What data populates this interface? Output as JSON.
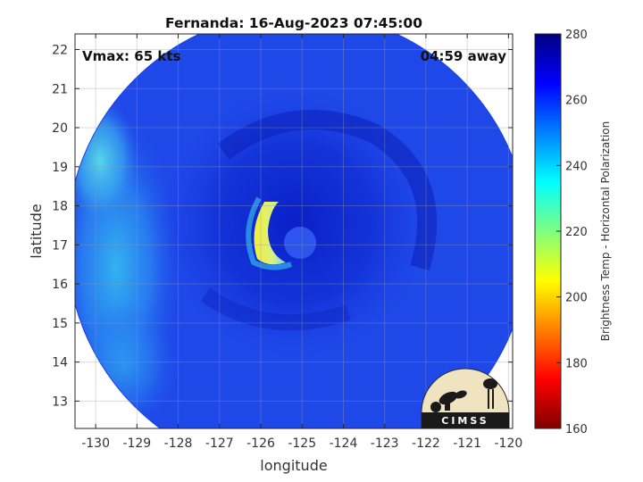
{
  "chart_data": {
    "type": "heatmap",
    "title": "Fernanda: 16-Aug-2023 07:45:00",
    "annotations": {
      "top_left": "Vmax: 65 kts",
      "top_right": "04:59 away"
    },
    "xlabel": "longitude",
    "ylabel": "latitude",
    "xlim": [
      -130.5,
      -119.9
    ],
    "ylim": [
      12.3,
      22.4
    ],
    "xticks": [
      -130,
      -129,
      -128,
      -127,
      -126,
      -125,
      -124,
      -123,
      -122,
      -121,
      -120
    ],
    "yticks": [
      13,
      14,
      15,
      16,
      17,
      18,
      19,
      20,
      21,
      22
    ],
    "grid": true,
    "storm_center": {
      "lon": -125.1,
      "lat": 17.05
    },
    "swath_radius_deg": 5.6,
    "features": [
      {
        "name": "eyewall convection",
        "lon": -125.75,
        "lat": 17.3,
        "value": 208
      },
      {
        "name": "western outer band",
        "lon": -129.5,
        "lat": 17.0,
        "value": 240
      },
      {
        "name": "northwest band",
        "lon": -130.0,
        "lat": 19.0,
        "value": 238
      },
      {
        "name": "core rain shield",
        "lon": -125.0,
        "lat": 17.5,
        "value": 262
      }
    ],
    "background_value": 268,
    "colorbar": {
      "label": "Brightness Temp - Horizontal Polarization",
      "range": [
        160,
        280
      ],
      "ticks": [
        160,
        180,
        200,
        220,
        240,
        260,
        280
      ],
      "colormap": [
        "#800000",
        "#ff0000",
        "#ff8000",
        "#ffff00",
        "#80ff80",
        "#00ffff",
        "#0080ff",
        "#0000ff",
        "#000080"
      ]
    },
    "logo": "CIMSS"
  }
}
